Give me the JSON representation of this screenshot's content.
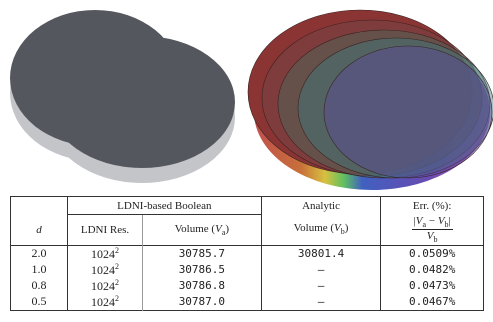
{
  "table": {
    "header": {
      "group": "LDNI-based Boolean",
      "analytic": "Analytic",
      "error": "Err. (%):"
    },
    "columns": {
      "d": "d",
      "res": "LDNI Res.",
      "va": [
        "Volume (",
        "V",
        "a",
        ")"
      ],
      "vb": [
        "Volume (",
        "V",
        "b",
        ")"
      ],
      "err_num": [
        "|",
        "V",
        "a",
        " − ",
        "V",
        "b",
        "|"
      ],
      "err_den": [
        "V",
        "b"
      ]
    },
    "rows": [
      [
        "2.0",
        {
          "base": "1024",
          "exp": "2"
        },
        "30785.7",
        "30801.4",
        "0.0509%"
      ],
      [
        "1.0",
        {
          "base": "1024",
          "exp": "2"
        },
        "30786.5",
        "—",
        "0.0482%"
      ],
      [
        "0.8",
        {
          "base": "1024",
          "exp": "2"
        },
        "30786.8",
        "—",
        "0.0473%"
      ],
      [
        "0.5",
        {
          "base": "1024",
          "exp": "2"
        },
        "30787.0",
        "—",
        "0.0467%"
      ]
    ]
  }
}
